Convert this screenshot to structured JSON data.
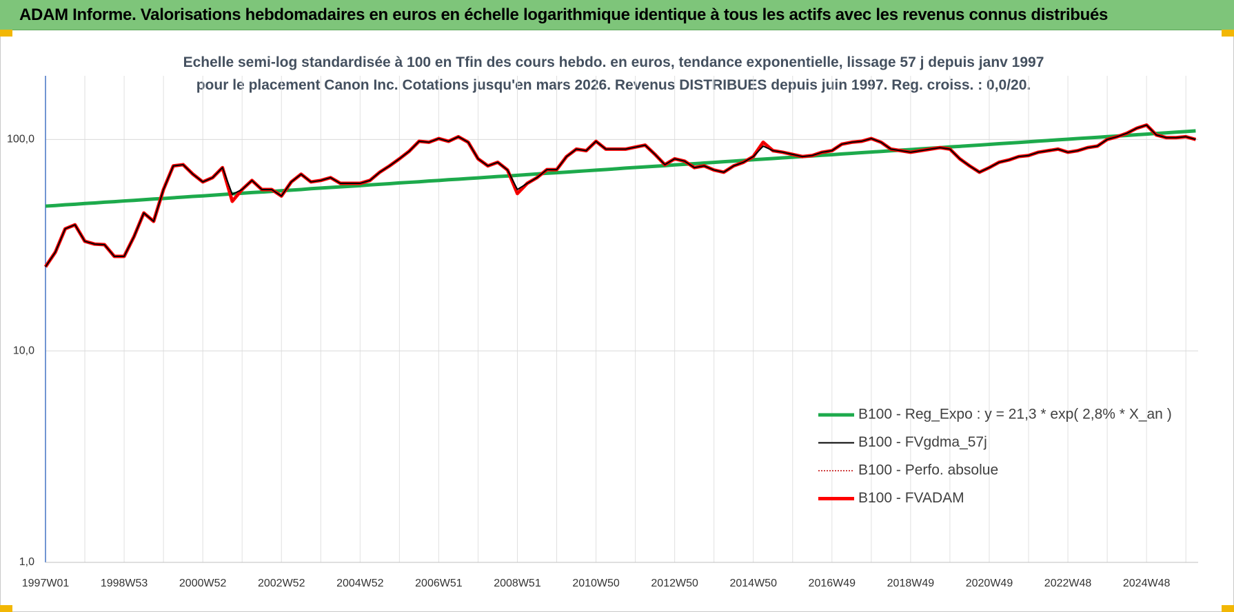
{
  "chart_data": {
    "type": "line",
    "title": "ADAM Informe. Valorisations hebdomadaires en euros en échelle logarithmique identique à tous les actifs avec les revenus connus distribués",
    "subtitle": "Echelle semi-log standardisée à 100 en Tfin des cours hebdo. en euros, tendance exponentielle, lissage 57 j depuis janv 1997 pour le placement Canon Inc. Cotations jusqu'en mars 2026. Revenus DISTRIBUES depuis juin 1997. Reg. croiss. : 0,0/20.",
    "log_y": true,
    "grid": true,
    "legend": "lower right",
    "ylim": [
      1,
      200
    ],
    "yticks": [
      {
        "value": 1,
        "label": "1,0"
      },
      {
        "value": 10,
        "label": "10,0"
      },
      {
        "value": 100,
        "label": "100,0"
      }
    ],
    "categories": [
      "1997W01",
      null,
      null,
      null,
      null,
      null,
      null,
      null,
      "1998W53",
      null,
      null,
      null,
      null,
      null,
      null,
      null,
      "2000W52",
      null,
      null,
      null,
      null,
      null,
      null,
      null,
      "2002W52",
      null,
      null,
      null,
      null,
      null,
      null,
      null,
      "2004W52",
      null,
      null,
      null,
      null,
      null,
      null,
      null,
      "2006W51",
      null,
      null,
      null,
      null,
      null,
      null,
      null,
      "2008W51",
      null,
      null,
      null,
      null,
      null,
      null,
      null,
      "2010W50",
      null,
      null,
      null,
      null,
      null,
      null,
      null,
      "2012W50",
      null,
      null,
      null,
      null,
      null,
      null,
      null,
      "2014W50",
      null,
      null,
      null,
      null,
      null,
      null,
      null,
      "2016W49",
      null,
      null,
      null,
      null,
      null,
      null,
      null,
      "2018W49",
      null,
      null,
      null,
      null,
      null,
      null,
      null,
      "2020W49",
      null,
      null,
      null,
      null,
      null,
      null,
      null,
      "2022W48",
      null,
      null,
      null,
      null,
      null,
      null,
      null,
      "2024W48",
      null,
      null,
      null,
      null,
      null
    ],
    "series": [
      {
        "name": "B100 - Reg_Expo : y = 21,3 * exp( 2,8% *  X_an )",
        "color": "#1daa4c",
        "linewidth": 5,
        "values": [
          48.4,
          48.7,
          49.1,
          49.4,
          49.8,
          50.1,
          50.5,
          50.8,
          51.2,
          51.5,
          51.9,
          52.3,
          52.6,
          53.0,
          53.4,
          53.8,
          54.1,
          54.5,
          54.9,
          55.3,
          55.7,
          56.1,
          56.4,
          56.8,
          57.2,
          57.6,
          58.0,
          58.5,
          58.9,
          59.3,
          59.7,
          60.1,
          60.5,
          61.0,
          61.4,
          61.8,
          62.3,
          62.7,
          63.1,
          63.6,
          64.0,
          64.5,
          64.9,
          65.4,
          65.8,
          66.3,
          66.8,
          67.2,
          67.7,
          68.2,
          68.7,
          69.2,
          69.6,
          70.1,
          70.6,
          71.1,
          71.6,
          72.1,
          72.6,
          73.2,
          73.7,
          74.2,
          74.7,
          75.2,
          75.8,
          76.3,
          76.8,
          77.4,
          77.9,
          78.5,
          79.0,
          79.6,
          80.2,
          80.7,
          81.3,
          81.9,
          82.4,
          83.0,
          83.6,
          84.2,
          84.7,
          85.4,
          86.0,
          86.6,
          87.2,
          87.8,
          88.4,
          89.0,
          89.6,
          90.3,
          90.9,
          91.5,
          92.2,
          92.8,
          93.5,
          94.1,
          94.8,
          95.5,
          96.1,
          96.8,
          97.5,
          98.2,
          98.9,
          99.6,
          100.3,
          101.0,
          101.7,
          102.4,
          103.1,
          103.8,
          104.5,
          105.3,
          106.0,
          106.8,
          107.5,
          108.3,
          109.0,
          109.8
        ]
      },
      {
        "name": "B100 - FVgdma_57j",
        "color": "#000000",
        "linewidth": 2,
        "values": [
          25,
          29.3,
          37.8,
          39.5,
          33,
          32,
          31.8,
          28,
          28,
          34.7,
          44.9,
          41,
          58,
          75,
          76,
          68.5,
          63,
          66,
          73.6,
          55,
          58,
          64,
          58,
          58,
          54,
          63,
          68.5,
          63,
          64,
          66,
          62,
          62,
          62,
          64,
          70,
          75,
          81,
          88,
          98,
          97,
          101,
          98,
          103,
          97,
          81,
          75,
          78,
          71.7,
          58,
          62,
          66,
          72,
          72,
          83,
          90,
          88.5,
          98,
          90,
          90,
          90,
          92,
          94,
          85,
          76,
          81,
          79,
          73.6,
          75,
          71.7,
          70,
          75,
          78,
          83,
          93,
          88.5,
          87,
          85,
          83,
          84,
          87,
          88.5,
          95,
          97,
          98,
          101,
          97,
          90,
          88.5,
          87,
          88.5,
          90,
          91.5,
          90,
          81,
          75,
          70,
          73.6,
          78,
          80,
          83,
          84,
          87,
          88.5,
          90,
          87,
          88.5,
          91.5,
          93,
          100,
          103,
          107,
          113,
          117,
          105,
          102,
          102,
          103,
          100
        ]
      },
      {
        "name": "B100 - Perfo. absolue",
        "color": "#c00000",
        "linewidth": 1.5,
        "dash": "dotted",
        "values": [
          25,
          29.3,
          37.8,
          39.5,
          33,
          32,
          31.8,
          28,
          28,
          34.7,
          44.9,
          41,
          58,
          75,
          76,
          68.5,
          63,
          66,
          73.6,
          51,
          58,
          64,
          58,
          58,
          54,
          63,
          68.5,
          63,
          64,
          66,
          62,
          62,
          62,
          64,
          70,
          75,
          81,
          88,
          98,
          97,
          101,
          98,
          103,
          97,
          81,
          75,
          78,
          71.7,
          55.5,
          62,
          66,
          72,
          72,
          83,
          90,
          88.5,
          98,
          90,
          90,
          90,
          92,
          94,
          85,
          76,
          81,
          79,
          73.6,
          75,
          71.7,
          70,
          75,
          78,
          83,
          97,
          88.5,
          87,
          85,
          83,
          84,
          87,
          88.5,
          95,
          97,
          98,
          101,
          97,
          90,
          88.5,
          87,
          88.5,
          90,
          91.5,
          90,
          81,
          75,
          70,
          73.6,
          78,
          80,
          83,
          84,
          87,
          88.5,
          90,
          87,
          88.5,
          91.5,
          93,
          100,
          103,
          107,
          113,
          117,
          105,
          102,
          102,
          103,
          100
        ]
      },
      {
        "name": "B100 - FVADAM",
        "color": "#ff0000",
        "linewidth": 5,
        "values": [
          25,
          29.3,
          37.8,
          39.5,
          33,
          32,
          31.8,
          28,
          28,
          34.7,
          44.9,
          41,
          58,
          75,
          76,
          68.5,
          63,
          66,
          73.6,
          51,
          58,
          64,
          58,
          58,
          54,
          63,
          68.5,
          63,
          64,
          66,
          62,
          62,
          62,
          64,
          70,
          75,
          81,
          88,
          98,
          97,
          101,
          98,
          103,
          97,
          81,
          75,
          78,
          71.7,
          55.5,
          62,
          66,
          72,
          72,
          83,
          90,
          88.5,
          98,
          90,
          90,
          90,
          92,
          94,
          85,
          76,
          81,
          79,
          73.6,
          75,
          71.7,
          70,
          75,
          78,
          83,
          97,
          88.5,
          87,
          85,
          83,
          84,
          87,
          88.5,
          95,
          97,
          98,
          101,
          97,
          90,
          88.5,
          87,
          88.5,
          90,
          91.5,
          90,
          81,
          75,
          70,
          73.6,
          78,
          80,
          83,
          84,
          87,
          88.5,
          90,
          87,
          88.5,
          91.5,
          93,
          100,
          103,
          107,
          113,
          117,
          105,
          102,
          102,
          103,
          100
        ]
      }
    ]
  }
}
